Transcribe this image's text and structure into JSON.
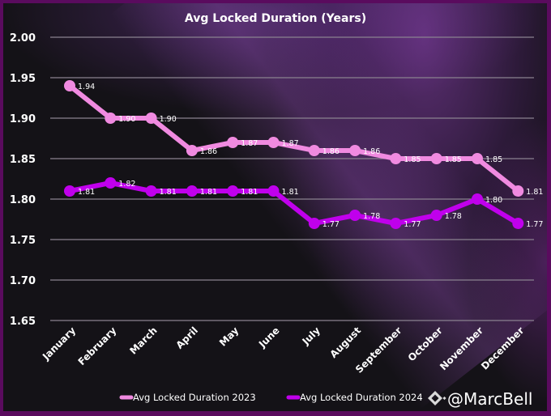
{
  "chart_data": {
    "type": "line",
    "title": "Avg Locked Duration (Years)",
    "xlabel": "",
    "ylabel": "",
    "categories": [
      "January",
      "February",
      "March",
      "April",
      "May",
      "June",
      "July",
      "August",
      "September",
      "October",
      "November",
      "December"
    ],
    "series": [
      {
        "name": "Avg Locked Duration 2023",
        "color": "#f08ae0",
        "values": [
          1.94,
          1.9,
          1.9,
          1.86,
          1.87,
          1.87,
          1.86,
          1.86,
          1.85,
          1.85,
          1.85,
          1.81
        ]
      },
      {
        "name": "Avg Locked Duration 2024",
        "color": "#c000ec",
        "values": [
          1.81,
          1.82,
          1.81,
          1.81,
          1.81,
          1.81,
          1.77,
          1.78,
          1.77,
          1.78,
          1.8,
          1.77
        ]
      }
    ],
    "ylim": [
      1.65,
      2.0
    ],
    "yticks": [
      "1.65",
      "1.70",
      "1.75",
      "1.80",
      "1.85",
      "1.90",
      "1.95",
      "2.00"
    ],
    "grid": true,
    "legend_position": "bottom",
    "data_labels": true
  },
  "watermark": {
    "text": "@MarcBell",
    "icon": "binance-diamond-icon"
  }
}
